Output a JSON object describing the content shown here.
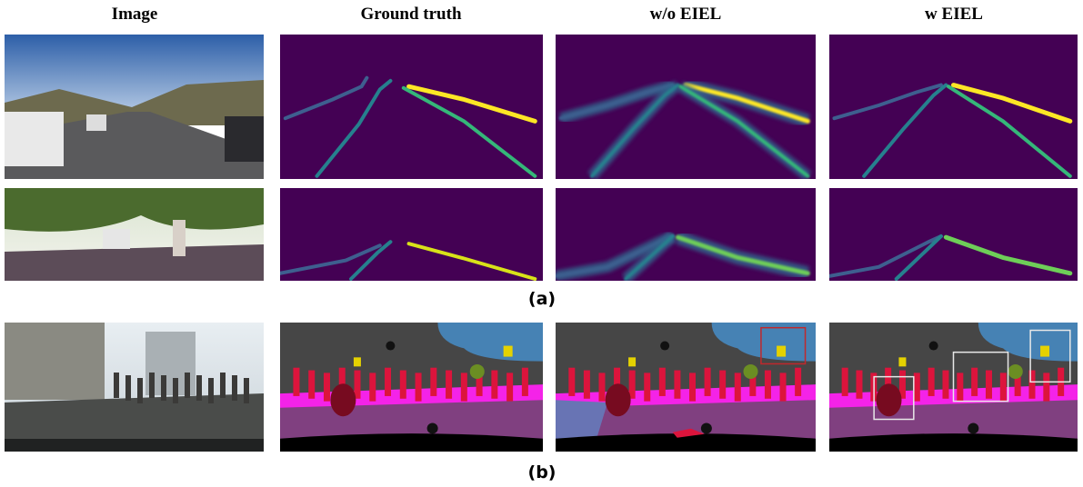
{
  "columns": [
    "Image",
    "Ground truth",
    "w/o EIEL",
    "w EIEL"
  ],
  "captions": [
    "(a)",
    "(b)"
  ]
}
